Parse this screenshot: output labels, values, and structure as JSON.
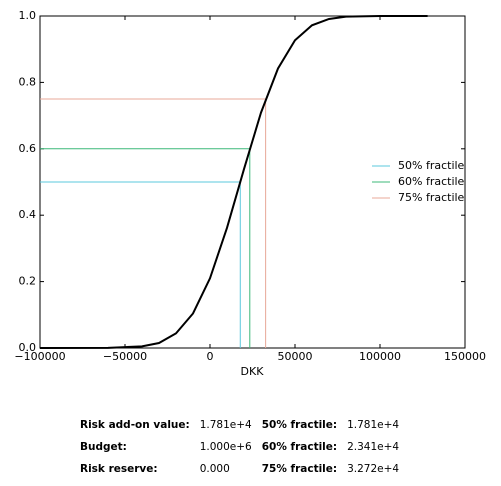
{
  "chart_data": {
    "type": "line",
    "xlabel": "DKK",
    "x": [
      -100000,
      -60000,
      -40000,
      -30000,
      -20000,
      -10000,
      0,
      10000,
      20000,
      30000,
      40000,
      50000,
      60000,
      70000,
      80000,
      100000,
      128000
    ],
    "series": [
      {
        "color": "#000000",
        "values": [
          0,
          0.0002,
          0.005,
          0.015,
          0.044,
          0.104,
          0.21,
          0.362,
          0.539,
          0.709,
          0.842,
          0.927,
          0.972,
          0.991,
          0.998,
          1.0,
          1.0
        ]
      }
    ],
    "fractiles": [
      {
        "name": "50% fractile",
        "color": "#5bc8dc",
        "x": 17810,
        "y": 0.5
      },
      {
        "name": "60% fractile",
        "color": "#3cb878",
        "x": 23410,
        "y": 0.6
      },
      {
        "name": "75% fractile",
        "color": "#e8a898",
        "x": 32720,
        "y": 0.75
      }
    ],
    "xlim": [
      -100000,
      150000
    ],
    "xticks": [
      {
        "value": -100000,
        "label": "−100000"
      },
      {
        "value": -50000,
        "label": "−50000"
      },
      0,
      50000,
      100000,
      150000
    ],
    "ylim": [
      0,
      1
    ],
    "yticks": [
      {
        "value": 0,
        "label": "0.0"
      },
      0.2,
      0.4,
      0.6,
      0.8,
      {
        "value": 1,
        "label": "1.0"
      }
    ],
    "legend": "right"
  },
  "table": {
    "rows": [
      [
        "Risk add-on value:",
        "1.781e+4",
        "50% fractile:",
        "1.781e+4"
      ],
      [
        "Budget:",
        "1.000e+6",
        "60% fractile:",
        "2.341e+4"
      ],
      [
        "Risk reserve:",
        "0.000",
        "75% fractile:",
        "3.272e+4"
      ]
    ]
  }
}
